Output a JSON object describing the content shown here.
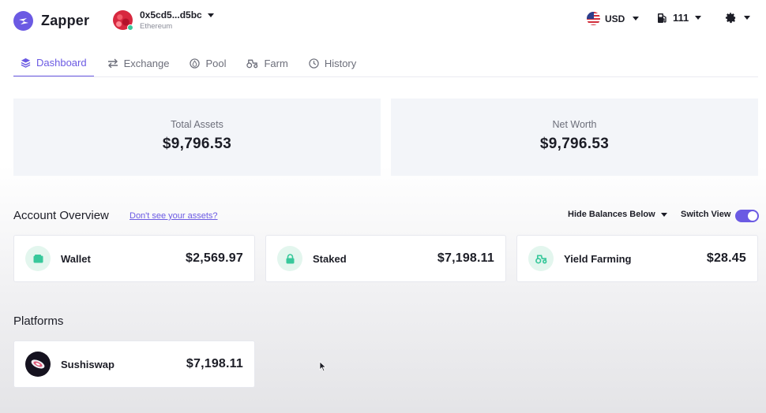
{
  "app": {
    "name": "Zapper"
  },
  "account": {
    "address": "0x5cd5...d5bc",
    "network": "Ethereum"
  },
  "header": {
    "currency": "USD",
    "gas": "111"
  },
  "tabs": [
    {
      "label": "Dashboard",
      "icon": "layers-icon",
      "active": true
    },
    {
      "label": "Exchange",
      "icon": "swap-icon"
    },
    {
      "label": "Pool",
      "icon": "droplet-icon"
    },
    {
      "label": "Farm",
      "icon": "tractor-icon"
    },
    {
      "label": "History",
      "icon": "clock-icon"
    }
  ],
  "summary": {
    "total_assets_label": "Total Assets",
    "total_assets_value": "$9,796.53",
    "net_worth_label": "Net Worth",
    "net_worth_value": "$9,796.53"
  },
  "overview": {
    "title": "Account Overview",
    "help_link": "Don't see your assets?",
    "hide_balances": "Hide Balances Below",
    "switch_view": "Switch View",
    "switch_on": true,
    "cards": [
      {
        "name": "Wallet",
        "value": "$2,569.97",
        "icon": "wallet-icon"
      },
      {
        "name": "Staked",
        "value": "$7,198.11",
        "icon": "lock-icon"
      },
      {
        "name": "Yield Farming",
        "value": "$28.45",
        "icon": "tractor-icon"
      }
    ]
  },
  "platforms": {
    "title": "Platforms",
    "items": [
      {
        "name": "Sushiswap",
        "value": "$7,198.11",
        "icon": "sushiswap-logo"
      }
    ]
  },
  "colors": {
    "accent": "#6b5ae3",
    "green": "#38c89b",
    "panel": "#f3f5f9"
  }
}
